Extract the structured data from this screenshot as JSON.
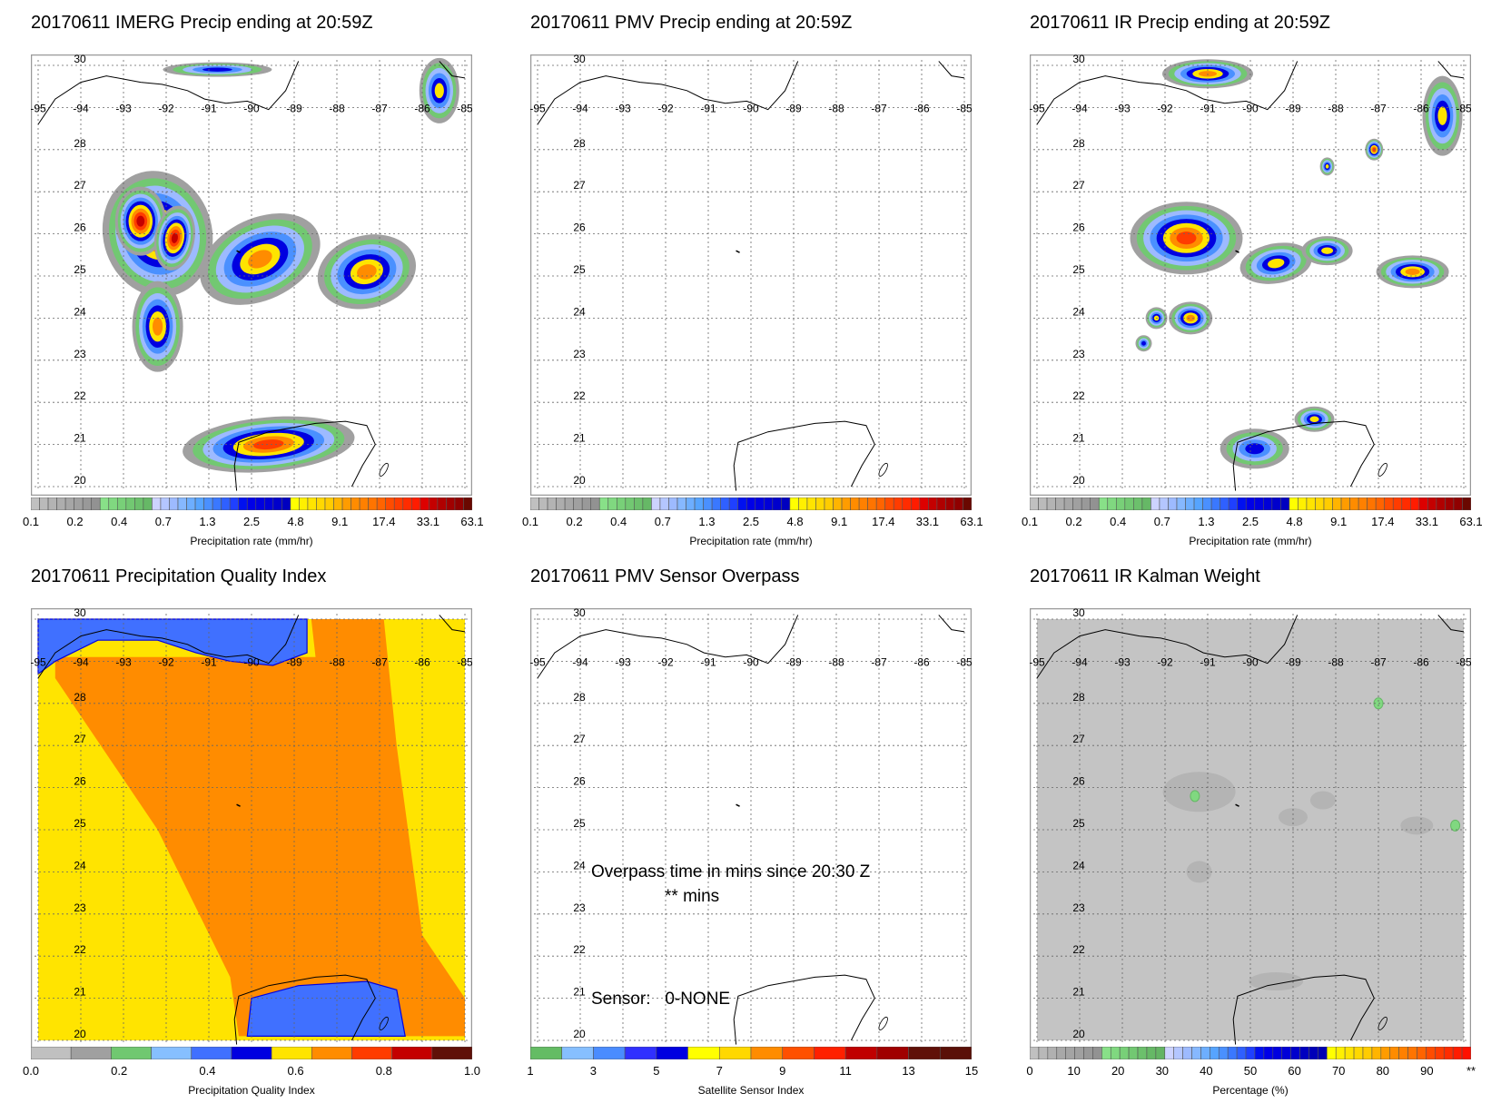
{
  "figure": {
    "panels": [
      {
        "id": "imerg",
        "title": "20170611 IMERG Precip ending at 20:59Z",
        "kind": "precip",
        "colorbar": "precip"
      },
      {
        "id": "pmv",
        "title": "20170611 PMV Precip ending at 20:59Z",
        "kind": "empty",
        "colorbar": "precip"
      },
      {
        "id": "ir",
        "title": "20170611 IR Precip ending at 20:59Z",
        "kind": "ir",
        "colorbar": "precip"
      },
      {
        "id": "pqi",
        "title": "20170611 Precipitation Quality Index",
        "kind": "pqi",
        "colorbar": "pqi"
      },
      {
        "id": "overpass",
        "title": "20170611 PMV Sensor Overpass",
        "kind": "empty",
        "colorbar": "sensor",
        "overlay": {
          "line1": "Overpass time in mins since 20:30 Z",
          "line2": "** mins",
          "line3": "Sensor:   0-NONE"
        }
      },
      {
        "id": "kalman",
        "title": "20170611 IR Kalman Weight",
        "kind": "kalman",
        "colorbar": "pct"
      }
    ]
  },
  "chart_data": [
    {
      "type": "heatmap",
      "title": "20170611 IMERG Precip ending at 20:59Z",
      "xlabel": "longitude",
      "ylabel": "latitude",
      "x_ticks": [
        "-95",
        "-94",
        "-93",
        "-92",
        "-91",
        "-90",
        "-89",
        "-88",
        "-87",
        "-86",
        "-85"
      ],
      "y_ticks": [
        "30",
        "28",
        "27",
        "26",
        "25",
        "24",
        "23",
        "22",
        "21",
        "20"
      ],
      "xlim": [
        -95,
        -85
      ],
      "ylim": [
        20,
        30
      ],
      "grid": true,
      "colorbar": {
        "label": "Precipitation rate (mm/hr)",
        "ticks": [
          "0.1",
          "0.2",
          "0.4",
          "0.7",
          "1.3",
          "2.5",
          "4.8",
          "9.1",
          "17.4",
          "33.1",
          "63.1"
        ]
      },
      "features": [
        {
          "name": "cluster-west",
          "lon": -92.1,
          "lat": 26.0,
          "peak_mm_hr": 33.1
        },
        {
          "name": "cluster-central",
          "lon": -89.8,
          "lat": 25.3,
          "peak_mm_hr": 9.1
        },
        {
          "name": "cluster-east",
          "lon": -87.2,
          "lat": 25.2,
          "peak_mm_hr": 9.1
        },
        {
          "name": "cluster-south",
          "lon": -92.2,
          "lat": 23.7,
          "peak_mm_hr": 4.8
        },
        {
          "name": "cluster-yucatan",
          "lon": -89.6,
          "lat": 21.0,
          "peak_mm_hr": 17.4
        },
        {
          "name": "cluster-northeast",
          "lon": -85.8,
          "lat": 29.6,
          "peak_mm_hr": 4.8
        }
      ]
    },
    {
      "type": "heatmap",
      "title": "20170611 PMV Precip ending at 20:59Z",
      "xlim": [
        -95,
        -85
      ],
      "ylim": [
        20,
        30
      ],
      "colorbar": {
        "label": "Precipitation rate (mm/hr)",
        "ticks": [
          "0.1",
          "0.2",
          "0.4",
          "0.7",
          "1.3",
          "2.5",
          "4.8",
          "9.1",
          "17.4",
          "33.1",
          "63.1"
        ]
      },
      "features": []
    },
    {
      "type": "heatmap",
      "title": "20170611 IR Precip ending at 20:59Z",
      "xlim": [
        -95,
        -85
      ],
      "ylim": [
        20,
        30
      ],
      "colorbar": {
        "label": "Precipitation rate (mm/hr)",
        "ticks": [
          "0.1",
          "0.2",
          "0.4",
          "0.7",
          "1.3",
          "2.5",
          "4.8",
          "9.1",
          "17.4",
          "33.1",
          "63.1"
        ]
      },
      "features": [
        {
          "name": "cluster-west",
          "lon": -91.6,
          "lat": 25.9,
          "peak_mm_hr": 9.1
        },
        {
          "name": "cluster-central",
          "lon": -89.3,
          "lat": 25.2,
          "peak_mm_hr": 4.8
        },
        {
          "name": "cluster-east",
          "lon": -86.3,
          "lat": 25.0,
          "peak_mm_hr": 9.1
        },
        {
          "name": "cluster-24n",
          "lon": -91.4,
          "lat": 24.0,
          "peak_mm_hr": 9.1
        },
        {
          "name": "cluster-yucatan",
          "lon": -90.2,
          "lat": 20.9,
          "peak_mm_hr": 2.5
        },
        {
          "name": "cluster-28n",
          "lon": -87.1,
          "lat": 28.0,
          "peak_mm_hr": 17.4
        }
      ]
    },
    {
      "type": "heatmap",
      "title": "20170611 Precipitation Quality Index",
      "xlim": [
        -95,
        -85
      ],
      "ylim": [
        20,
        30
      ],
      "colorbar": {
        "label": "Precipitation Quality Index",
        "ticks": [
          "0.0",
          "0.2",
          "0.4",
          "0.6",
          "0.8",
          "1.0"
        ]
      },
      "regions": [
        {
          "name": "coastal-north",
          "value": 0.45
        },
        {
          "name": "central-band",
          "value": 0.75
        },
        {
          "name": "west-southwest",
          "value": 0.65
        },
        {
          "name": "east-strip",
          "value": 0.65
        },
        {
          "name": "yucatan",
          "value": 0.45
        }
      ]
    },
    {
      "type": "heatmap",
      "title": "20170611 PMV Sensor Overpass",
      "xlim": [
        -95,
        -85
      ],
      "ylim": [
        20,
        30
      ],
      "colorbar": {
        "label": "Satellite Sensor Index",
        "ticks": [
          "1",
          "3",
          "5",
          "7",
          "9",
          "11",
          "13",
          "15"
        ]
      },
      "annotations": [
        "Overpass time in mins since 20:30 Z",
        "** mins",
        "Sensor:   0-NONE"
      ]
    },
    {
      "type": "heatmap",
      "title": "20170611 IR Kalman Weight",
      "xlim": [
        -95,
        -85
      ],
      "ylim": [
        20,
        30
      ],
      "colorbar": {
        "label": "Percentage (%)",
        "ticks": [
          "0",
          "10",
          "20",
          "30",
          "40",
          "50",
          "60",
          "70",
          "80",
          "90",
          "**"
        ]
      },
      "background_value_pct": 5,
      "features": [
        {
          "name": "green-spot-1",
          "lon": -91.3,
          "lat": 25.8,
          "value_pct": 20
        },
        {
          "name": "green-spot-2",
          "lon": -87.0,
          "lat": 28.0,
          "value_pct": 20
        },
        {
          "name": "green-spot-3",
          "lon": -85.2,
          "lat": 25.1,
          "value_pct": 20
        }
      ]
    }
  ],
  "axes": {
    "x_ticks": [
      "-95",
      "-94",
      "-93",
      "-92",
      "-91",
      "-90",
      "-89",
      "-88",
      "-87",
      "-86",
      "-85"
    ],
    "y_ticks": [
      "30",
      "28",
      "27",
      "26",
      "25",
      "24",
      "23",
      "22",
      "21",
      "20"
    ]
  },
  "colorbars": {
    "precip": {
      "label": "Precipitation rate (mm/hr)",
      "ticks": [
        "0.1",
        "0.2",
        "0.4",
        "0.7",
        "1.3",
        "2.5",
        "4.8",
        "9.1",
        "17.4",
        "33.1",
        "63.1"
      ],
      "colors": [
        "#c0c0c0",
        "#bababa",
        "#b3b3b3",
        "#adadad",
        "#a6a6a6",
        "#a0a0a0",
        "#999999",
        "#929292",
        "#88e088",
        "#80d880",
        "#78d078",
        "#72c872",
        "#6cc06c",
        "#66b866",
        "#cdd3ff",
        "#b4c6ff",
        "#9dbaff",
        "#86b8ff",
        "#6daeff",
        "#56a4ff",
        "#4a90ff",
        "#3a78ff",
        "#2f60ff",
        "#1f40ff",
        "#0010f0",
        "#0000e8",
        "#0000e0",
        "#0000d8",
        "#0000cc",
        "#0000c0",
        "#ffff00",
        "#fff000",
        "#ffe400",
        "#ffd800",
        "#ffcc00",
        "#ffb400",
        "#ff9c00",
        "#ff8c00",
        "#ff8000",
        "#ff7400",
        "#ff6400",
        "#ff4c00",
        "#ff3c00",
        "#ff2c00",
        "#ff1c00",
        "#dd0000",
        "#c40000",
        "#b00000",
        "#a00000",
        "#900000",
        "#6a0800"
      ]
    },
    "pqi": {
      "label": "Precipitation Quality Index",
      "ticks": [
        "0.0",
        "0.2",
        "0.4",
        "0.6",
        "0.8",
        "1.0"
      ],
      "colors": [
        "#c0c0c0",
        "#a0a0a0",
        "#70c870",
        "#86bfff",
        "#4070ff",
        "#0000e0",
        "#ffe400",
        "#ff8c00",
        "#ff3c00",
        "#c40000",
        "#601008"
      ]
    },
    "sensor": {
      "label": "Satellite Sensor Index",
      "ticks": [
        "1",
        "3",
        "5",
        "7",
        "9",
        "11",
        "13",
        "15"
      ],
      "colors": [
        "#64bc64",
        "#86bfff",
        "#4a8cff",
        "#3030ff",
        "#0000e0",
        "#ffff00",
        "#ffd800",
        "#ff8c00",
        "#ff5000",
        "#ff2000",
        "#c00000",
        "#a00000",
        "#601008",
        "#5a1008"
      ]
    },
    "pct": {
      "label": "Percentage (%)",
      "ticks": [
        "0",
        "10",
        "20",
        "30",
        "40",
        "50",
        "60",
        "70",
        "80",
        "90",
        "**"
      ],
      "colors": [
        "#c0c0c0",
        "#b8b8b8",
        "#b0b0b0",
        "#a8a8a8",
        "#a4a4a4",
        "#a0a0a0",
        "#989898",
        "#929292",
        "#88e088",
        "#80d880",
        "#78d078",
        "#72c872",
        "#6cc06c",
        "#66b866",
        "#64b464",
        "#cdd3ff",
        "#b4c6ff",
        "#9dbaff",
        "#86b8ff",
        "#6daeff",
        "#56a4ff",
        "#4a90ff",
        "#3a78ff",
        "#2f60ff",
        "#1f40ff",
        "#0010f0",
        "#0000e8",
        "#0000e0",
        "#0000d8",
        "#0000cc",
        "#0000c0",
        "#0000b8",
        "#0000b0",
        "#ffff00",
        "#fff000",
        "#ffe400",
        "#ffd800",
        "#ffcc00",
        "#ffb400",
        "#ff9c00",
        "#ff8c00",
        "#ff8000",
        "#ff7400",
        "#ff6400",
        "#ff4c00",
        "#ff3c00",
        "#ff2c00",
        "#ff1c00",
        "#ff1000"
      ]
    }
  },
  "colors": {
    "grid": "#666666",
    "frame": "#999999",
    "coast": "#000000",
    "kalman_bg": "#c4c4c4"
  }
}
